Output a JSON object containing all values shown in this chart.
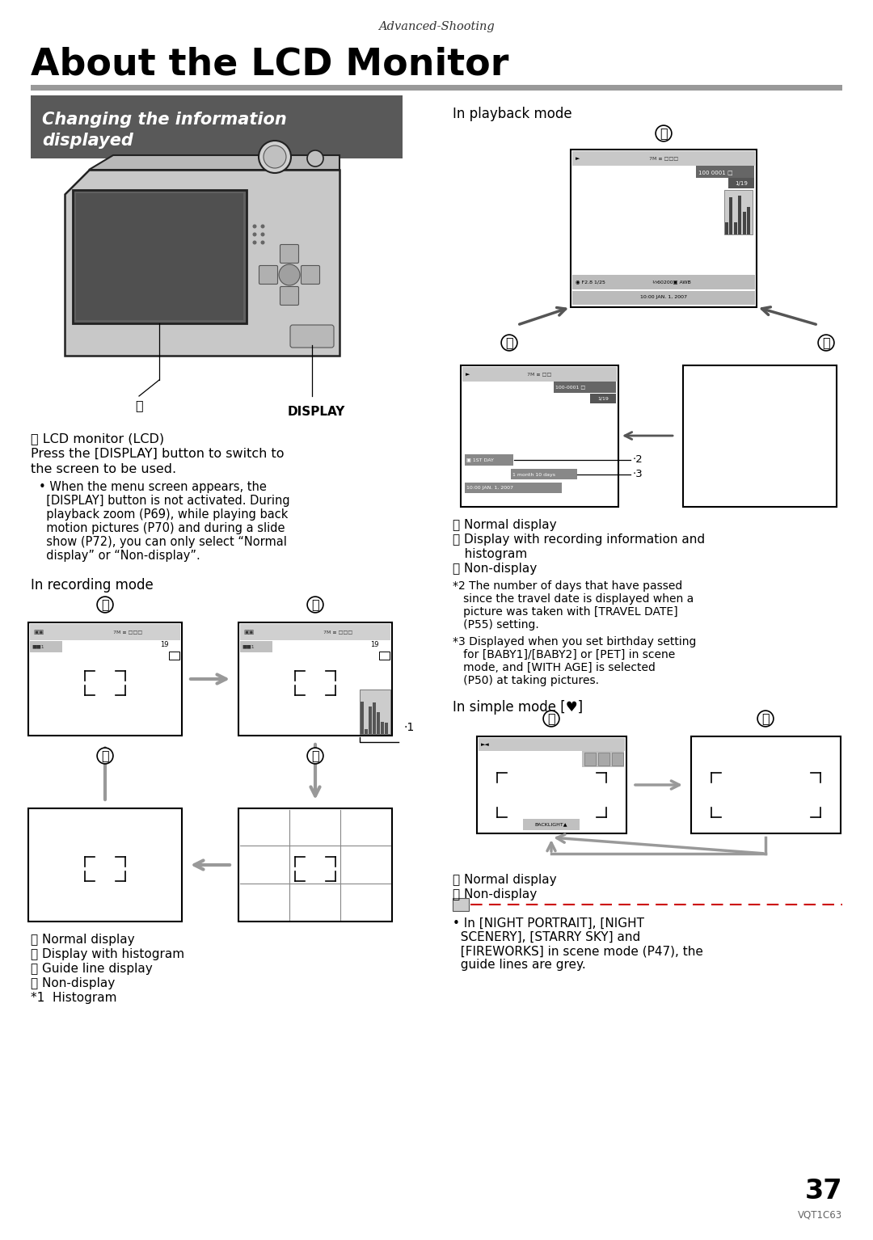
{
  "page_title": "About the LCD Monitor",
  "header_text": "Advanced-Shooting",
  "section1_bg": "#595959",
  "section1_text_color": "#ffffff",
  "separator_color": "#999999",
  "body_bg": "#ffffff",
  "text_color": "#000000",
  "playback_mode_label": "In playback mode",
  "recording_mode_label": "In recording mode",
  "simple_mode_label": "In simple mode [♥]",
  "label_A_text": "Ⓐ LCD monitor (LCD)",
  "label_press1": "Press the [DISPLAY] button to switch to",
  "label_press2": "the screen to be used.",
  "bullet_lines": [
    "• When the menu screen appears, the",
    "  [DISPLAY] button is not activated. During",
    "  playback zoom (P69), while playing back",
    "  motion pictures (P70) and during a slide",
    "  show (P72), you can only select “Normal",
    "  display” or “Non-display”."
  ],
  "rec_label_B": "Ⓑ Normal display",
  "rec_label_C": "Ⓒ Display with histogram",
  "rec_label_D": "Ⓓ Guide line display",
  "rec_label_E": "Ⓔ Non-display",
  "rec_label_star1": "*1  Histogram",
  "pb_label_G": "ⓖ Normal display",
  "pb_label_F_line1": "ⓕ Display with recording information and",
  "pb_label_F_line2": "   histogram",
  "pb_label_H": "ⓗ Non-display",
  "star2_lines": [
    "*2 The number of days that have passed",
    "   since the travel date is displayed when a",
    "   picture was taken with [TRAVEL DATE]",
    "   (P55) setting."
  ],
  "star3_lines": [
    "*3 Displayed when you set birthday setting",
    "   for [BABY1]/[BABY2] or [PET] in scene",
    "   mode, and [WITH AGE] is selected",
    "   (P50) at taking pictures."
  ],
  "sim_label_I": "ⓘ Normal display",
  "sim_label_J": "ⓙ Non-display",
  "simple_bullet_lines": [
    "• In [NIGHT PORTRAIT], [NIGHT",
    "  SCENERY], [STARRY SKY] and",
    "  [FIREWORKS] in scene mode (P47), the",
    "  guide lines are grey."
  ],
  "page_number": "37",
  "footer_code": "VQT1C63",
  "arrow_gray": "#999999",
  "arrow_dark": "#555555"
}
